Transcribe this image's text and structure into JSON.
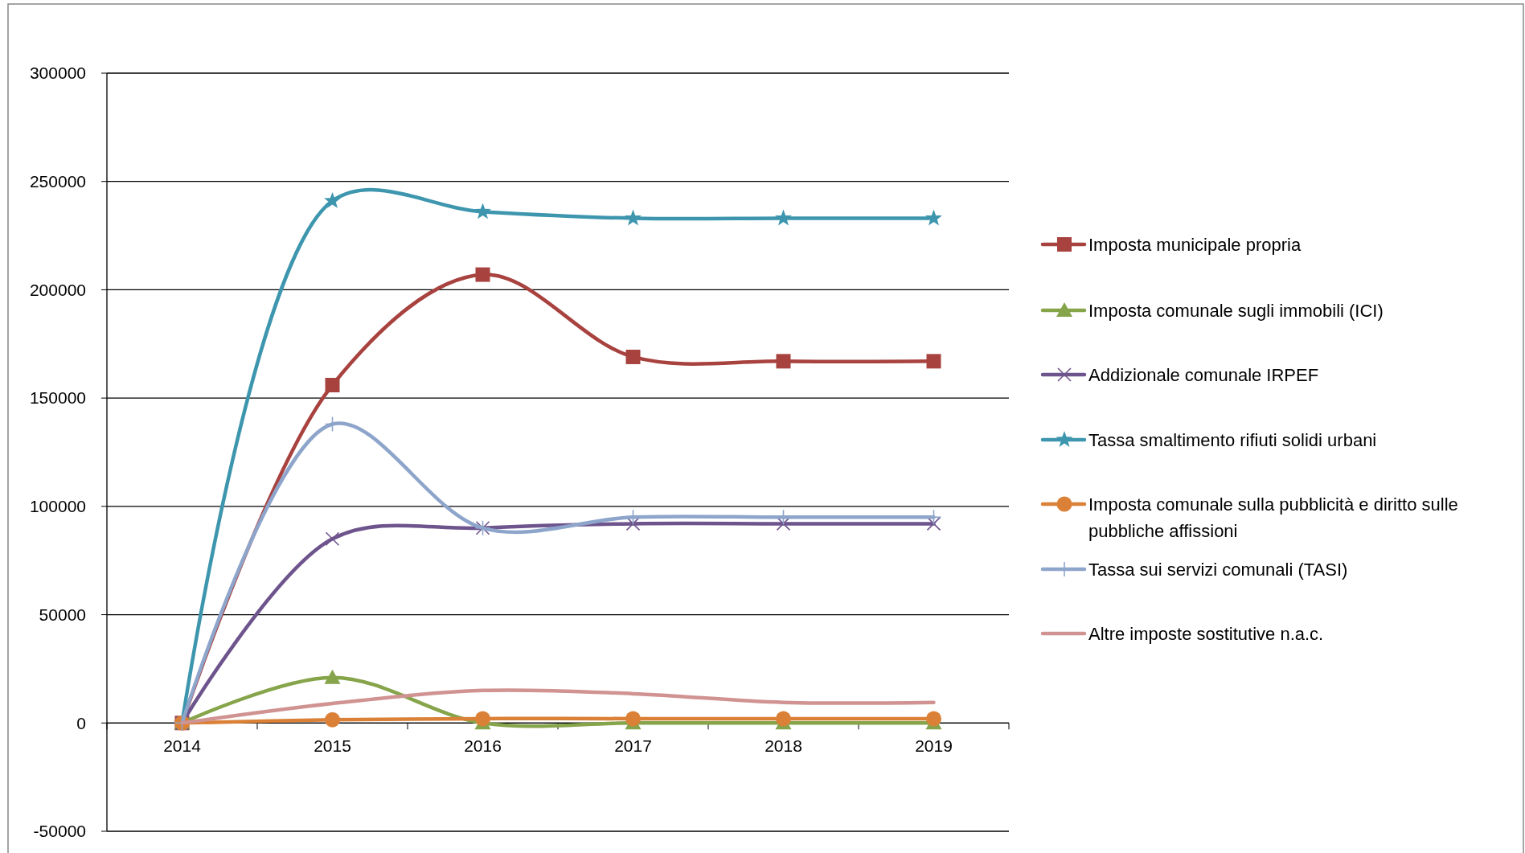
{
  "chart_data": {
    "type": "line",
    "categories": [
      "2014",
      "2015",
      "2016",
      "2017",
      "2018",
      "2019"
    ],
    "ylim": [
      -50000,
      300000
    ],
    "yticks": [
      -50000,
      0,
      50000,
      100000,
      150000,
      200000,
      250000,
      300000
    ],
    "grid": "y",
    "legend": "right",
    "series": [
      {
        "name": "Imposta municipale propria",
        "color": "#a8423f",
        "marker": "square",
        "values": [
          0,
          156000,
          207000,
          169000,
          167000,
          167000
        ]
      },
      {
        "name": "Imposta comunale sugli immobili (ICI)",
        "color": "#86a44a",
        "marker": "triangle",
        "values": [
          0,
          21000,
          0,
          0,
          0,
          0
        ]
      },
      {
        "name": "Addizionale comunale IRPEF",
        "color": "#6e548d",
        "marker": "cross",
        "values": [
          0,
          85000,
          90000,
          92000,
          92000,
          92000
        ]
      },
      {
        "name": "Tassa smaltimento rifiuti solidi urbani",
        "color": "#3d96ae",
        "marker": "star",
        "values": [
          0,
          241000,
          236000,
          233000,
          233000,
          233000
        ]
      },
      {
        "name": "Imposta comunale sulla pubblicità e diritto sulle pubbliche affissioni",
        "color": "#da8137",
        "marker": "circle",
        "values": [
          0,
          1500,
          2000,
          2000,
          2000,
          2000
        ]
      },
      {
        "name": "Tassa sui servizi comunali (TASI)",
        "color": "#8ea5cb",
        "marker": "plus",
        "values": [
          0,
          138000,
          90000,
          95000,
          95000,
          95000
        ]
      },
      {
        "name": "Altre imposte sostitutive n.a.c.",
        "color": "#d09392",
        "marker": "none",
        "values": [
          0,
          9000,
          15000,
          13500,
          9500,
          9500
        ]
      }
    ]
  }
}
